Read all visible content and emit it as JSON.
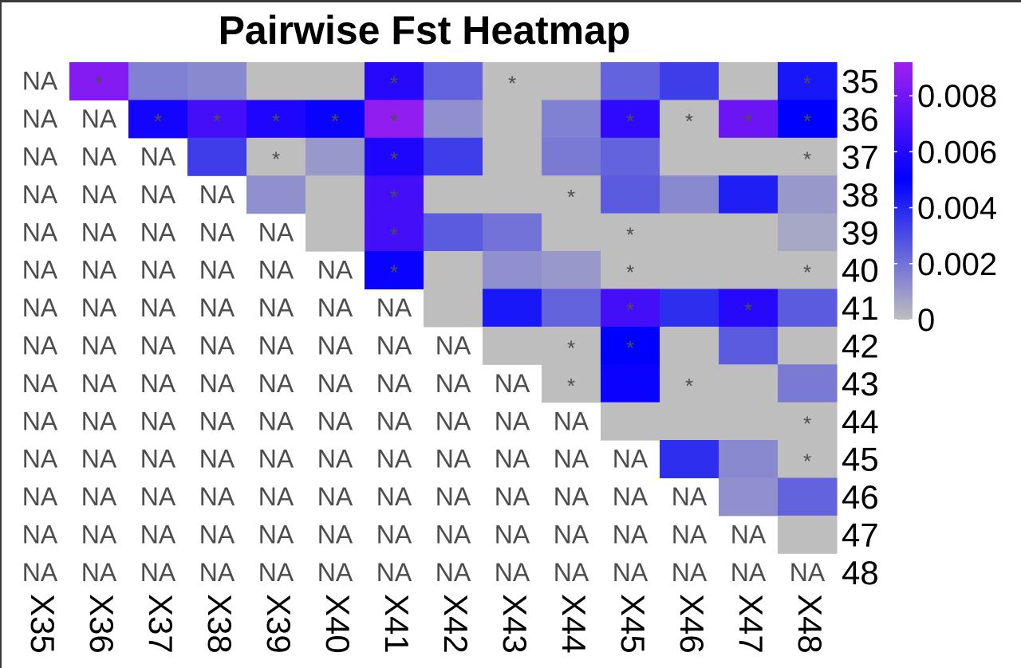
{
  "chart_data": {
    "type": "heatmap",
    "title": "Pairwise Fst Heatmap",
    "columns": [
      "X35",
      "X36",
      "X37",
      "X38",
      "X39",
      "X40",
      "X41",
      "X42",
      "X43",
      "X44",
      "X45",
      "X46",
      "X47",
      "X48"
    ],
    "rows": [
      "35",
      "36",
      "37",
      "38",
      "39",
      "40",
      "41",
      "42",
      "43",
      "44",
      "45",
      "46",
      "47",
      "48"
    ],
    "values": [
      [
        null,
        0.0085,
        0.0016,
        0.0014,
        0,
        0,
        0.006,
        0.0024,
        0,
        0,
        0.0024,
        0.0034,
        0,
        0.0044
      ],
      [
        null,
        null,
        0.0055,
        0.0068,
        0.0058,
        0.0052,
        0.0088,
        0.0012,
        0,
        0.0016,
        0.0062,
        0,
        0.0078,
        0.005
      ],
      [
        null,
        null,
        null,
        0.0034,
        0,
        0.001,
        0.0058,
        0.0034,
        0,
        0.0018,
        0.0024,
        0,
        0,
        0
      ],
      [
        null,
        null,
        null,
        null,
        0.0012,
        0,
        0.0068,
        0,
        0,
        0,
        0.0026,
        0.0014,
        0.0042,
        0.001
      ],
      [
        null,
        null,
        null,
        null,
        null,
        0,
        0.0068,
        0.0026,
        0.002,
        0,
        0,
        0,
        0,
        0.0006
      ],
      [
        null,
        null,
        null,
        null,
        null,
        null,
        0.0052,
        0,
        0.0012,
        0.001,
        0,
        0,
        0,
        0
      ],
      [
        null,
        null,
        null,
        null,
        null,
        null,
        null,
        0,
        0.0044,
        0.0024,
        0.0068,
        0.0038,
        0.006,
        0.0026
      ],
      [
        null,
        null,
        null,
        null,
        null,
        null,
        null,
        null,
        0,
        0,
        0.005,
        0,
        0.0026,
        0
      ],
      [
        null,
        null,
        null,
        null,
        null,
        null,
        null,
        null,
        null,
        0,
        0.0052,
        0,
        0,
        0.0018
      ],
      [
        null,
        null,
        null,
        null,
        null,
        null,
        null,
        null,
        null,
        null,
        0,
        0,
        0,
        0
      ],
      [
        null,
        null,
        null,
        null,
        null,
        null,
        null,
        null,
        null,
        null,
        null,
        0.0038,
        0.0014,
        0
      ],
      [
        null,
        null,
        null,
        null,
        null,
        null,
        null,
        null,
        null,
        null,
        null,
        null,
        0.0012,
        0.0024
      ],
      [
        null,
        null,
        null,
        null,
        null,
        null,
        null,
        null,
        null,
        null,
        null,
        null,
        null,
        0
      ],
      [
        null,
        null,
        null,
        null,
        null,
        null,
        null,
        null,
        null,
        null,
        null,
        null,
        null,
        null
      ]
    ],
    "significant": [
      [
        0,
        1
      ],
      [
        0,
        6
      ],
      [
        0,
        8
      ],
      [
        0,
        13
      ],
      [
        1,
        2
      ],
      [
        1,
        3
      ],
      [
        1,
        4
      ],
      [
        1,
        5
      ],
      [
        1,
        6
      ],
      [
        1,
        10
      ],
      [
        1,
        11
      ],
      [
        1,
        12
      ],
      [
        1,
        13
      ],
      [
        2,
        4
      ],
      [
        2,
        6
      ],
      [
        2,
        13
      ],
      [
        3,
        6
      ],
      [
        3,
        9
      ],
      [
        4,
        6
      ],
      [
        4,
        10
      ],
      [
        5,
        6
      ],
      [
        5,
        10
      ],
      [
        5,
        13
      ],
      [
        6,
        10
      ],
      [
        6,
        12
      ],
      [
        7,
        9
      ],
      [
        7,
        10
      ],
      [
        8,
        9
      ],
      [
        8,
        11
      ],
      [
        9,
        13
      ],
      [
        10,
        13
      ]
    ],
    "na_label": "NA",
    "significance_marker": "*",
    "legend": {
      "position": "right",
      "ticks": [
        0.008,
        0.006,
        0.004,
        0.002,
        0
      ],
      "tick_labels": [
        "0.008",
        "0.006",
        "0.004",
        "0.002",
        "0"
      ],
      "range": [
        0,
        0.0092
      ]
    },
    "colors": {
      "low": "#bebebe",
      "mid": "#0000ff",
      "high": "#a020f0",
      "na_fill": "#ffffff"
    },
    "grid": false
  }
}
